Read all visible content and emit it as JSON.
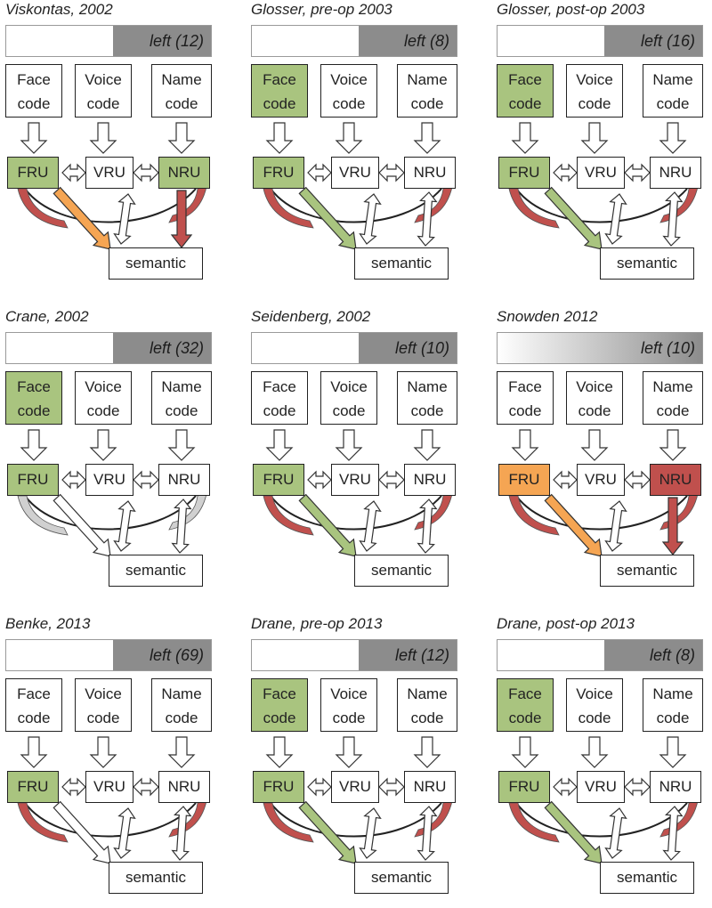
{
  "labels": {
    "face": [
      "Face",
      "code"
    ],
    "voice": [
      "Voice",
      "code"
    ],
    "name": [
      "Name",
      "code"
    ],
    "fru": "FRU",
    "vru": "VRU",
    "nru": "NRU",
    "semantic": "semantic"
  },
  "colors": {
    "green": "#a9c47f",
    "green_arrow": "#a9c47f",
    "orange": "#f5a553",
    "red": "#c0504d",
    "gray_bar": "#8c8c8c",
    "gray_arrow": "#d0d0d0"
  },
  "panels": [
    {
      "title": "Viskontas, 2002",
      "bar_label": "left (12)",
      "bar_fraction": 0.48,
      "gradient": false,
      "face_code": "none",
      "fru": "green",
      "vru": "none",
      "nru": "green",
      "fru_sem": "orange",
      "nru_sem": "red",
      "fru_tail": "red",
      "nru_tail": "red"
    },
    {
      "title": "Glosser, pre-op 2003",
      "bar_label": "left (8)",
      "bar_fraction": 0.48,
      "gradient": false,
      "face_code": "green",
      "fru": "green",
      "vru": "none",
      "nru": "none",
      "fru_sem": "green",
      "nru_sem": "none",
      "fru_tail": "red",
      "nru_tail": "red"
    },
    {
      "title": "Glosser, post-op 2003",
      "bar_label": "left (16)",
      "bar_fraction": 0.48,
      "gradient": false,
      "face_code": "green",
      "fru": "green",
      "vru": "none",
      "nru": "none",
      "fru_sem": "green",
      "nru_sem": "none",
      "fru_tail": "red",
      "nru_tail": "red"
    },
    {
      "title": "Crane, 2002",
      "bar_label": "left (32)",
      "bar_fraction": 0.48,
      "gradient": false,
      "face_code": "green",
      "fru": "green",
      "vru": "none",
      "nru": "none",
      "fru_sem": "none",
      "nru_sem": "none",
      "fru_tail": "gray",
      "nru_tail": "gray"
    },
    {
      "title": "Seidenberg, 2002",
      "bar_label": "left (10)",
      "bar_fraction": 0.48,
      "gradient": false,
      "face_code": "none",
      "fru": "green",
      "vru": "none",
      "nru": "none",
      "fru_sem": "green",
      "nru_sem": "none",
      "fru_tail": "red",
      "nru_tail": "red"
    },
    {
      "title": "Snowden 2012",
      "bar_label": "left (10)",
      "bar_fraction": 1.0,
      "gradient": true,
      "face_code": "none",
      "fru": "orange",
      "vru": "none",
      "nru": "red",
      "fru_sem": "orange",
      "nru_sem": "red",
      "fru_tail": "red",
      "nru_tail": "red"
    },
    {
      "title": "Benke, 2013",
      "bar_label": "left (69)",
      "bar_fraction": 0.48,
      "gradient": false,
      "face_code": "none",
      "fru": "green",
      "vru": "none",
      "nru": "none",
      "fru_sem": "none",
      "nru_sem": "none",
      "fru_tail": "red",
      "nru_tail": "red"
    },
    {
      "title": "Drane, pre-op 2013",
      "bar_label": "left (12)",
      "bar_fraction": 0.48,
      "gradient": false,
      "face_code": "green",
      "fru": "green",
      "vru": "none",
      "nru": "none",
      "fru_sem": "green",
      "nru_sem": "none",
      "fru_tail": "red",
      "nru_tail": "red"
    },
    {
      "title": "Drane, post-op 2013",
      "bar_label": "left (8)",
      "bar_fraction": 0.48,
      "gradient": false,
      "face_code": "green",
      "fru": "green",
      "vru": "none",
      "nru": "none",
      "fru_sem": "green",
      "nru_sem": "none",
      "fru_tail": "red",
      "nru_tail": "red"
    }
  ]
}
